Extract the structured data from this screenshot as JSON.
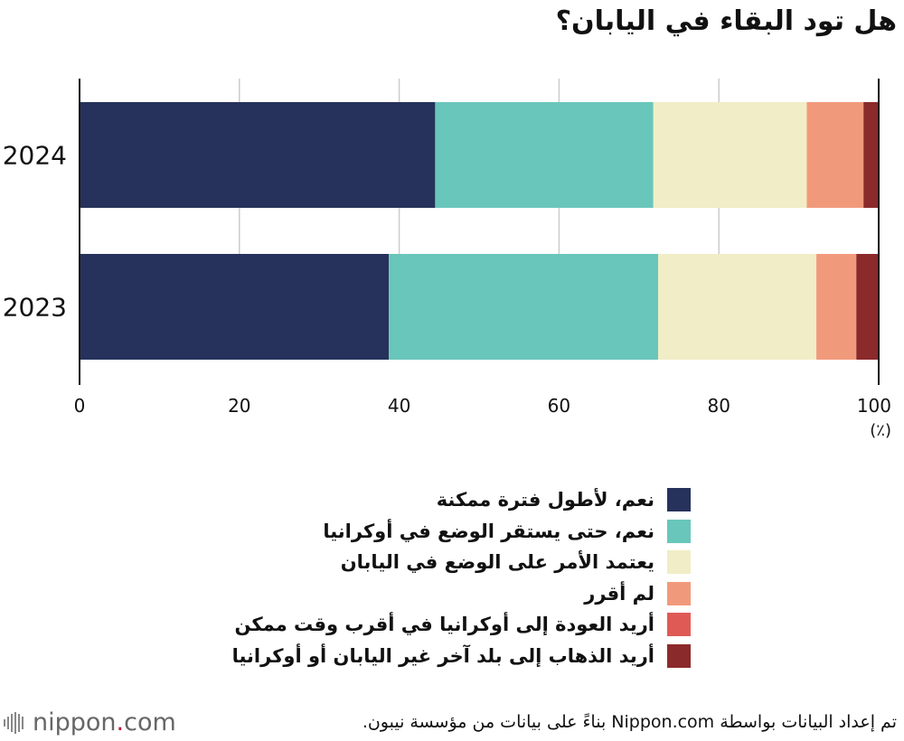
{
  "title": "هل تود البقاء في اليابان؟",
  "chart_data": {
    "type": "bar",
    "orientation": "horizontal",
    "stacked": true,
    "categories": [
      "2024",
      "2023"
    ],
    "xlim": [
      0,
      100
    ],
    "xticks": [
      0,
      20,
      40,
      60,
      80,
      100
    ],
    "xunit": "(٪)",
    "grid": true,
    "series": [
      {
        "name": "نعم، لأطول فترة ممكنة",
        "color": "#26325b",
        "values": [
          44.5,
          38.7
        ]
      },
      {
        "name": "نعم، حتى يستقر الوضع في أوكرانيا",
        "color": "#69c6ba",
        "values": [
          27.3,
          33.7
        ]
      },
      {
        "name": "يعتمد الأمر على الوضع في اليابان",
        "color": "#f1edc6",
        "values": [
          19.2,
          19.8
        ]
      },
      {
        "name": "لم أقرر",
        "color": "#f19a7b",
        "values": [
          7.1,
          5.0
        ]
      },
      {
        "name": "أريد العودة إلى أوكرانيا في أقرب وقت ممكن",
        "color": "#e05a55",
        "values": [
          0.0,
          0.0
        ]
      },
      {
        "name": "أريد الذهاب إلى بلد آخر غير اليابان أو أوكرانيا",
        "color": "#8b2a2a",
        "values": [
          1.9,
          2.8
        ]
      }
    ]
  },
  "source": "تم إعداد البيانات بواسطة Nippon.com بناءً على بيانات من مؤسسة نيبون.",
  "logo": {
    "text": "nippon",
    "dot": ".",
    "suffix": "com"
  }
}
